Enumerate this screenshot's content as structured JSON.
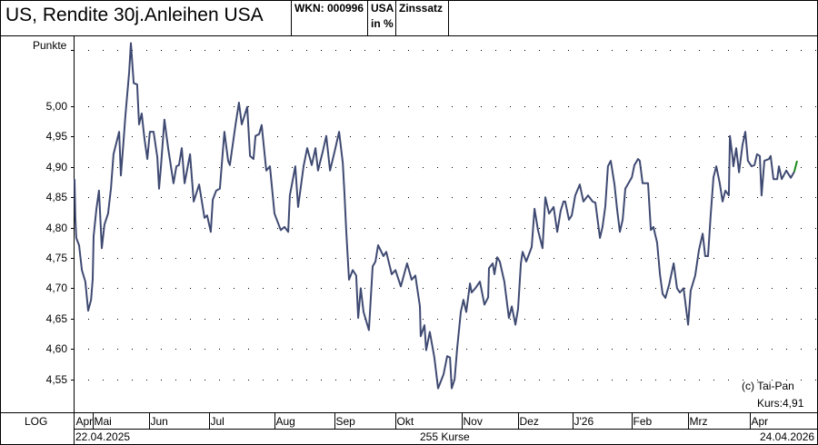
{
  "header": {
    "title": "US, Rendite 30j.Anleihen USA",
    "wkn": "WKN: 000996",
    "unit_line1": "USA",
    "unit_line2": "in %",
    "category": "Zinssatz"
  },
  "footer": {
    "scale_mode": "LOG",
    "start_date": "22.04.2025",
    "count": "255 Kurse",
    "end_date": "24.04.2026"
  },
  "annotations": {
    "copyright": "(c) Tai-Pan",
    "last": "Kurs:4,91"
  },
  "colors": {
    "line": "#3f4a72",
    "last_up": "#1a8a1a"
  },
  "chart_data": {
    "type": "line",
    "title": "US, Rendite 30j.Anleihen USA",
    "ylabel": "Punkte",
    "xlabel": "",
    "ylim": [
      4.5,
      5.12
    ],
    "xlim": [
      0,
      254
    ],
    "grid": true,
    "yticks": [
      {
        "v": 5.0,
        "label": "5,00"
      },
      {
        "v": 4.95,
        "label": "4,95"
      },
      {
        "v": 4.9,
        "label": "4,90"
      },
      {
        "v": 4.85,
        "label": "4,85"
      },
      {
        "v": 4.8,
        "label": "4,80"
      },
      {
        "v": 4.75,
        "label": "4,75"
      },
      {
        "v": 4.7,
        "label": "4,70"
      },
      {
        "v": 4.65,
        "label": "4,65"
      },
      {
        "v": 4.6,
        "label": "4,60"
      },
      {
        "v": 4.55,
        "label": "4,55"
      }
    ],
    "months": [
      {
        "label": "Apr",
        "start": 0
      },
      {
        "label": "Mai",
        "start": 6.4
      },
      {
        "label": "Jun",
        "start": 26.2
      },
      {
        "label": "Jul",
        "start": 47.3
      },
      {
        "label": "Aug",
        "start": 70.3
      },
      {
        "label": "Sep",
        "start": 91.4
      },
      {
        "label": "Okt",
        "start": 112.8
      },
      {
        "label": "Nov",
        "start": 136.1
      },
      {
        "label": "Dez",
        "start": 155.9
      },
      {
        "label": "J'26",
        "start": 175.1
      },
      {
        "label": "Feb",
        "start": 195.9
      },
      {
        "label": "Mrz",
        "start": 215.7
      },
      {
        "label": "Apr",
        "start": 237.4
      }
    ],
    "last_value": 4.91,
    "points": [
      [
        0,
        4.88
      ],
      [
        0.3,
        4.816
      ],
      [
        0.6,
        4.783
      ],
      [
        1.6,
        4.771
      ],
      [
        2.6,
        4.73
      ],
      [
        3.8,
        4.711
      ],
      [
        4.8,
        4.663
      ],
      [
        5.8,
        4.681
      ],
      [
        6.4,
        4.715
      ],
      [
        6.7,
        4.786
      ],
      [
        7.7,
        4.831
      ],
      [
        8.6,
        4.861
      ],
      [
        9.6,
        4.766
      ],
      [
        10.5,
        4.805
      ],
      [
        11.8,
        4.823
      ],
      [
        12.8,
        4.865
      ],
      [
        13.7,
        4.921
      ],
      [
        15.7,
        4.958
      ],
      [
        16.3,
        4.886
      ],
      [
        17.3,
        4.946
      ],
      [
        17.9,
        4.985
      ],
      [
        19.2,
        5.056
      ],
      [
        19.8,
        5.104
      ],
      [
        20.8,
        5.038
      ],
      [
        22.0,
        5.036
      ],
      [
        22.7,
        4.97
      ],
      [
        23.6,
        4.988
      ],
      [
        24.6,
        4.946
      ],
      [
        25.6,
        4.913
      ],
      [
        26.5,
        4.958
      ],
      [
        27.8,
        4.958
      ],
      [
        29.1,
        4.916
      ],
      [
        29.7,
        4.864
      ],
      [
        30.4,
        4.901
      ],
      [
        31.6,
        4.978
      ],
      [
        32.9,
        4.931
      ],
      [
        34.8,
        4.873
      ],
      [
        35.8,
        4.901
      ],
      [
        36.7,
        4.903
      ],
      [
        37.7,
        4.931
      ],
      [
        38.7,
        4.873
      ],
      [
        40.6,
        4.921
      ],
      [
        41.9,
        4.843
      ],
      [
        43.8,
        4.871
      ],
      [
        45.7,
        4.816
      ],
      [
        46.6,
        4.82
      ],
      [
        47.9,
        4.793
      ],
      [
        48.6,
        4.846
      ],
      [
        49.8,
        4.861
      ],
      [
        51.1,
        4.864
      ],
      [
        52.7,
        4.958
      ],
      [
        54.0,
        4.91
      ],
      [
        54.6,
        4.903
      ],
      [
        56.6,
        4.97
      ],
      [
        57.8,
        5.006
      ],
      [
        58.8,
        4.97
      ],
      [
        60.7,
        4.999
      ],
      [
        61.7,
        4.918
      ],
      [
        62.9,
        4.913
      ],
      [
        63.6,
        4.951
      ],
      [
        64.9,
        4.954
      ],
      [
        65.8,
        4.969
      ],
      [
        67.4,
        4.894
      ],
      [
        68.7,
        4.901
      ],
      [
        70.3,
        4.823
      ],
      [
        72.5,
        4.796
      ],
      [
        73.8,
        4.801
      ],
      [
        75.1,
        4.793
      ],
      [
        75.7,
        4.853
      ],
      [
        77.6,
        4.901
      ],
      [
        78.6,
        4.834
      ],
      [
        80.5,
        4.901
      ],
      [
        81.8,
        4.931
      ],
      [
        83.4,
        4.903
      ],
      [
        84.7,
        4.931
      ],
      [
        85.6,
        4.894
      ],
      [
        87.2,
        4.924
      ],
      [
        88.5,
        4.951
      ],
      [
        89.8,
        4.894
      ],
      [
        91.4,
        4.925
      ],
      [
        93.0,
        4.958
      ],
      [
        94.3,
        4.906
      ],
      [
        94.9,
        4.856
      ],
      [
        95.5,
        4.796
      ],
      [
        96.5,
        4.714
      ],
      [
        97.8,
        4.73
      ],
      [
        99.0,
        4.721
      ],
      [
        99.7,
        4.651
      ],
      [
        100.6,
        4.7
      ],
      [
        101.6,
        4.661
      ],
      [
        103.5,
        4.631
      ],
      [
        104.8,
        4.736
      ],
      [
        105.8,
        4.744
      ],
      [
        106.7,
        4.771
      ],
      [
        108.6,
        4.753
      ],
      [
        109.6,
        4.76
      ],
      [
        111.5,
        4.723
      ],
      [
        112.8,
        4.73
      ],
      [
        114.7,
        4.703
      ],
      [
        116.9,
        4.741
      ],
      [
        118.5,
        4.714
      ],
      [
        119.8,
        4.721
      ],
      [
        121.4,
        4.67
      ],
      [
        121.7,
        4.621
      ],
      [
        123.0,
        4.639
      ],
      [
        123.6,
        4.598
      ],
      [
        124.9,
        4.628
      ],
      [
        126.5,
        4.586
      ],
      [
        127.8,
        4.535
      ],
      [
        129.7,
        4.558
      ],
      [
        131.0,
        4.588
      ],
      [
        132.0,
        4.586
      ],
      [
        132.6,
        4.535
      ],
      [
        133.6,
        4.55
      ],
      [
        134.5,
        4.601
      ],
      [
        135.8,
        4.661
      ],
      [
        136.7,
        4.681
      ],
      [
        137.7,
        4.661
      ],
      [
        139.0,
        4.708
      ],
      [
        139.6,
        4.693
      ],
      [
        140.9,
        4.7
      ],
      [
        142.5,
        4.711
      ],
      [
        144.1,
        4.673
      ],
      [
        145.4,
        4.685
      ],
      [
        145.7,
        4.733
      ],
      [
        147.0,
        4.741
      ],
      [
        147.6,
        4.723
      ],
      [
        148.6,
        4.751
      ],
      [
        149.5,
        4.744
      ],
      [
        151.1,
        4.711
      ],
      [
        152.7,
        4.651
      ],
      [
        153.7,
        4.67
      ],
      [
        155.0,
        4.64
      ],
      [
        155.9,
        4.666
      ],
      [
        156.9,
        4.741
      ],
      [
        157.5,
        4.76
      ],
      [
        158.8,
        4.744
      ],
      [
        160.7,
        4.768
      ],
      [
        161.7,
        4.831
      ],
      [
        162.9,
        4.796
      ],
      [
        164.5,
        4.766
      ],
      [
        165.5,
        4.85
      ],
      [
        166.8,
        4.823
      ],
      [
        168.4,
        4.834
      ],
      [
        169.7,
        4.793
      ],
      [
        170.9,
        4.828
      ],
      [
        171.9,
        4.843
      ],
      [
        172.5,
        4.843
      ],
      [
        173.8,
        4.813
      ],
      [
        174.8,
        4.82
      ],
      [
        176.0,
        4.853
      ],
      [
        177.6,
        4.871
      ],
      [
        178.9,
        4.843
      ],
      [
        180.5,
        4.853
      ],
      [
        182.1,
        4.843
      ],
      [
        183.1,
        4.841
      ],
      [
        184.7,
        4.783
      ],
      [
        185.6,
        4.801
      ],
      [
        186.6,
        4.835
      ],
      [
        187.5,
        4.901
      ],
      [
        188.5,
        4.91
      ],
      [
        189.8,
        4.871
      ],
      [
        190.7,
        4.831
      ],
      [
        191.7,
        4.793
      ],
      [
        192.7,
        4.813
      ],
      [
        193.6,
        4.864
      ],
      [
        195.9,
        4.883
      ],
      [
        196.8,
        4.903
      ],
      [
        198.1,
        4.913
      ],
      [
        198.7,
        4.91
      ],
      [
        199.7,
        4.873
      ],
      [
        201.6,
        4.873
      ],
      [
        202.6,
        4.796
      ],
      [
        203.5,
        4.801
      ],
      [
        204.8,
        4.775
      ],
      [
        205.8,
        4.723
      ],
      [
        206.7,
        4.691
      ],
      [
        207.7,
        4.684
      ],
      [
        209.0,
        4.706
      ],
      [
        210.6,
        4.741
      ],
      [
        211.8,
        4.7
      ],
      [
        212.8,
        4.693
      ],
      [
        214.1,
        4.7
      ],
      [
        215.7,
        4.64
      ],
      [
        216.6,
        4.696
      ],
      [
        218.2,
        4.721
      ],
      [
        219.5,
        4.763
      ],
      [
        220.8,
        4.79
      ],
      [
        221.7,
        4.753
      ],
      [
        222.7,
        4.753
      ],
      [
        223.6,
        4.82
      ],
      [
        224.6,
        4.883
      ],
      [
        225.6,
        4.901
      ],
      [
        226.8,
        4.873
      ],
      [
        227.8,
        4.843
      ],
      [
        228.8,
        4.861
      ],
      [
        230.0,
        4.853
      ],
      [
        230.4,
        4.951
      ],
      [
        231.3,
        4.916
      ],
      [
        231.6,
        4.901
      ],
      [
        232.6,
        4.931
      ],
      [
        233.6,
        4.891
      ],
      [
        234.8,
        4.936
      ],
      [
        235.8,
        4.958
      ],
      [
        236.7,
        4.91
      ],
      [
        238.0,
        4.901
      ],
      [
        239.0,
        4.903
      ],
      [
        239.9,
        4.921
      ],
      [
        240.9,
        4.918
      ],
      [
        241.5,
        4.853
      ],
      [
        242.5,
        4.91
      ],
      [
        244.1,
        4.913
      ],
      [
        244.7,
        4.918
      ],
      [
        245.7,
        4.88
      ],
      [
        247.0,
        4.88
      ],
      [
        247.6,
        4.901
      ],
      [
        248.6,
        4.88
      ],
      [
        250.2,
        4.894
      ],
      [
        251.8,
        4.882
      ],
      [
        253.0,
        4.892
      ],
      [
        254,
        4.91
      ]
    ]
  }
}
